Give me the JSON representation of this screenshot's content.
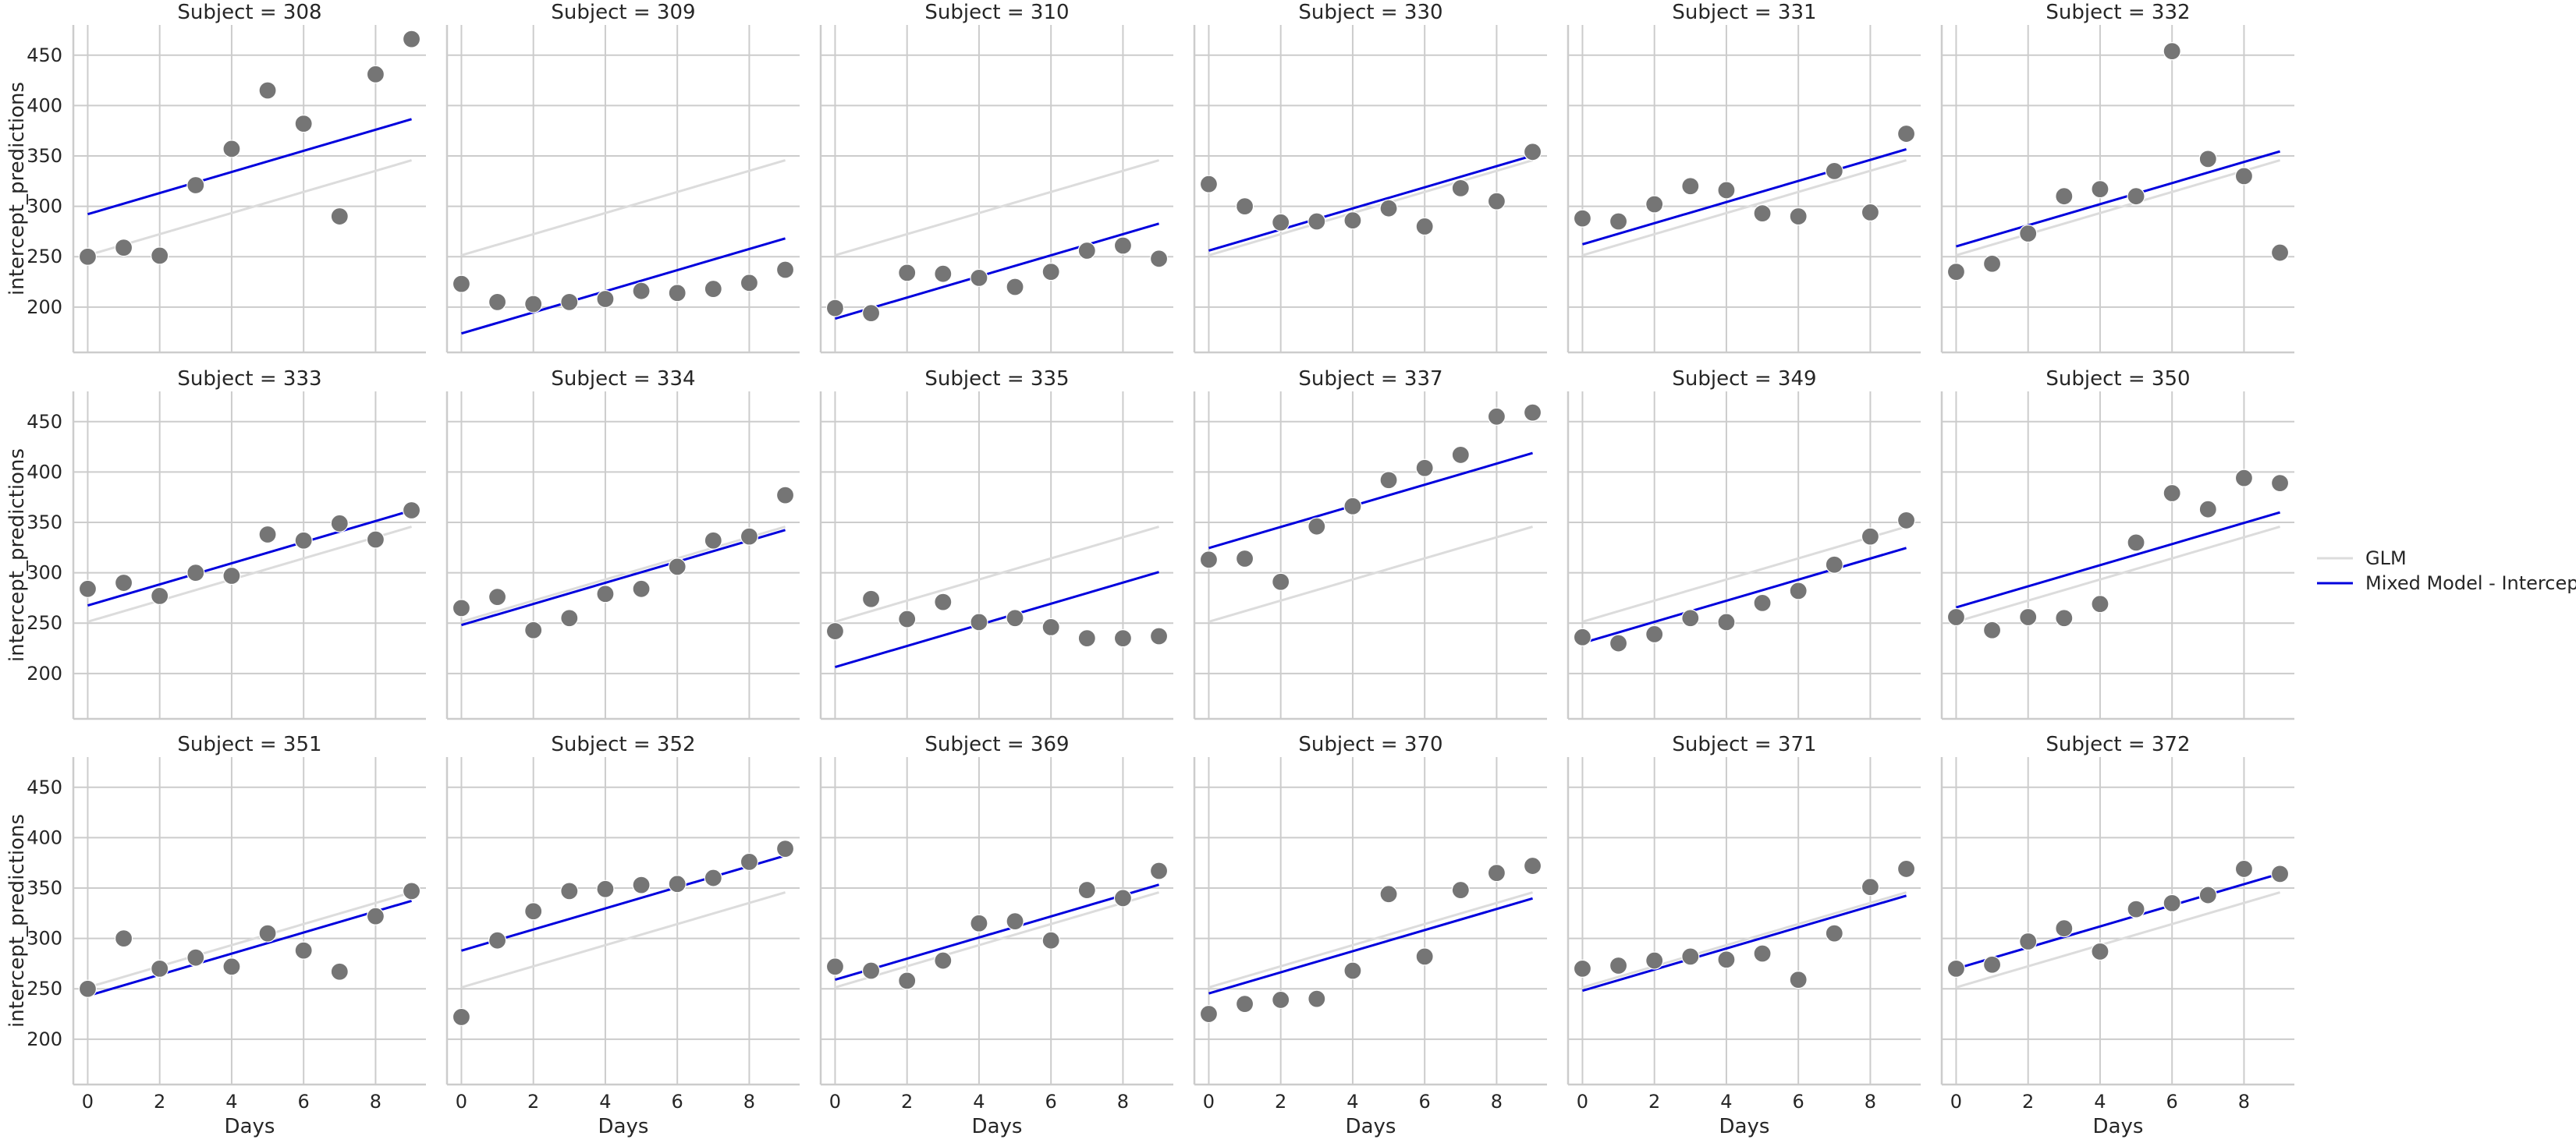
{
  "chart_data": {
    "type": "scatter",
    "xlabel": "Days",
    "ylabel": "intercept_predictions",
    "xlim": [
      -0.4,
      9.4
    ],
    "ylim": [
      155,
      480
    ],
    "xticks": [
      0,
      2,
      4,
      6,
      8
    ],
    "yticks": [
      200,
      250,
      300,
      350,
      400,
      450
    ],
    "grid": true,
    "legend_position": "right",
    "colors": {
      "points": "#757575",
      "glm": "#dcdcdc",
      "mixed": "#0000dd",
      "grid": "#cccccc",
      "axis": "#cccccc"
    },
    "legend": [
      {
        "label": "GLM",
        "color": "#dcdcdc"
      },
      {
        "label": "Mixed Model - Intercepts",
        "color": "#0000dd"
      }
    ],
    "glm_line": {
      "x": [
        0,
        9
      ],
      "y": [
        251.4,
        345.7
      ]
    },
    "x": [
      0,
      1,
      2,
      3,
      4,
      5,
      6,
      7,
      8,
      9
    ],
    "panels": [
      {
        "title": "Subject = 308",
        "y": [
          250,
          259,
          251,
          321,
          357,
          415,
          382,
          290,
          431,
          466
        ],
        "mixed": [
          292.2,
          386.5
        ]
      },
      {
        "title": "Subject = 309",
        "y": [
          223,
          205,
          203,
          205,
          208,
          216,
          214,
          218,
          224,
          237
        ],
        "mixed": [
          173.8,
          268.1
        ]
      },
      {
        "title": "Subject = 310",
        "y": [
          199,
          194,
          234,
          233,
          229,
          220,
          235,
          256,
          261,
          248
        ],
        "mixed": [
          188.5,
          282.8
        ]
      },
      {
        "title": "Subject = 330",
        "y": [
          322,
          300,
          284,
          285,
          286,
          298,
          280,
          318,
          305,
          354
        ],
        "mixed": [
          256.0,
          350.3
        ]
      },
      {
        "title": "Subject = 331",
        "y": [
          288,
          285,
          302,
          320,
          316,
          293,
          290,
          335,
          294,
          372
        ],
        "mixed": [
          262.3,
          356.6
        ]
      },
      {
        "title": "Subject = 332",
        "y": [
          235,
          243,
          273,
          310,
          317,
          310,
          454,
          347,
          330,
          254
        ],
        "mixed": [
          260.2,
          354.5
        ]
      },
      {
        "title": "Subject = 333",
        "y": [
          284,
          290,
          277,
          300,
          297,
          338,
          332,
          349,
          333,
          362
        ],
        "mixed": [
          267.5,
          361.8
        ]
      },
      {
        "title": "Subject = 334",
        "y": [
          265,
          276,
          243,
          255,
          279,
          284,
          306,
          332,
          336,
          377
        ],
        "mixed": [
          248.1,
          342.4
        ]
      },
      {
        "title": "Subject = 335",
        "y": [
          242,
          274,
          254,
          271,
          251,
          255,
          246,
          235,
          235,
          237
        ],
        "mixed": [
          206.4,
          300.7
        ]
      },
      {
        "title": "Subject = 337",
        "y": [
          313,
          314,
          291,
          346,
          366,
          392,
          404,
          417,
          455,
          459
        ],
        "mixed": [
          324.5,
          418.8
        ]
      },
      {
        "title": "Subject = 349",
        "y": [
          236,
          230,
          239,
          255,
          251,
          270,
          282,
          308,
          336,
          352
        ],
        "mixed": [
          230.3,
          324.6
        ]
      },
      {
        "title": "Subject = 350",
        "y": [
          256,
          243,
          256,
          255,
          269,
          330,
          379,
          363,
          394,
          389
        ],
        "mixed": [
          265.6,
          359.9
        ]
      },
      {
        "title": "Subject = 351",
        "y": [
          250,
          300,
          270,
          281,
          272,
          305,
          288,
          267,
          322,
          347
        ],
        "mixed": [
          243.0,
          337.3
        ]
      },
      {
        "title": "Subject = 352",
        "y": [
          222,
          298,
          327,
          347,
          349,
          353,
          354,
          360,
          376,
          389
        ],
        "mixed": [
          287.9,
          382.2
        ]
      },
      {
        "title": "Subject = 369",
        "y": [
          272,
          268,
          258,
          278,
          315,
          317,
          298,
          348,
          340,
          367
        ],
        "mixed": [
          259.0,
          353.3
        ]
      },
      {
        "title": "Subject = 370",
        "y": [
          225,
          235,
          239,
          240,
          268,
          344,
          282,
          348,
          365,
          372
        ],
        "mixed": [
          245.4,
          339.7
        ]
      },
      {
        "title": "Subject = 371",
        "y": [
          270,
          273,
          278,
          282,
          279,
          285,
          259,
          305,
          351,
          369
        ],
        "mixed": [
          248.1,
          342.4
        ]
      },
      {
        "title": "Subject = 372",
        "y": [
          270,
          274,
          297,
          310,
          287,
          329,
          335,
          343,
          369,
          364
        ],
        "mixed": [
          270.0,
          364.3
        ]
      }
    ]
  }
}
